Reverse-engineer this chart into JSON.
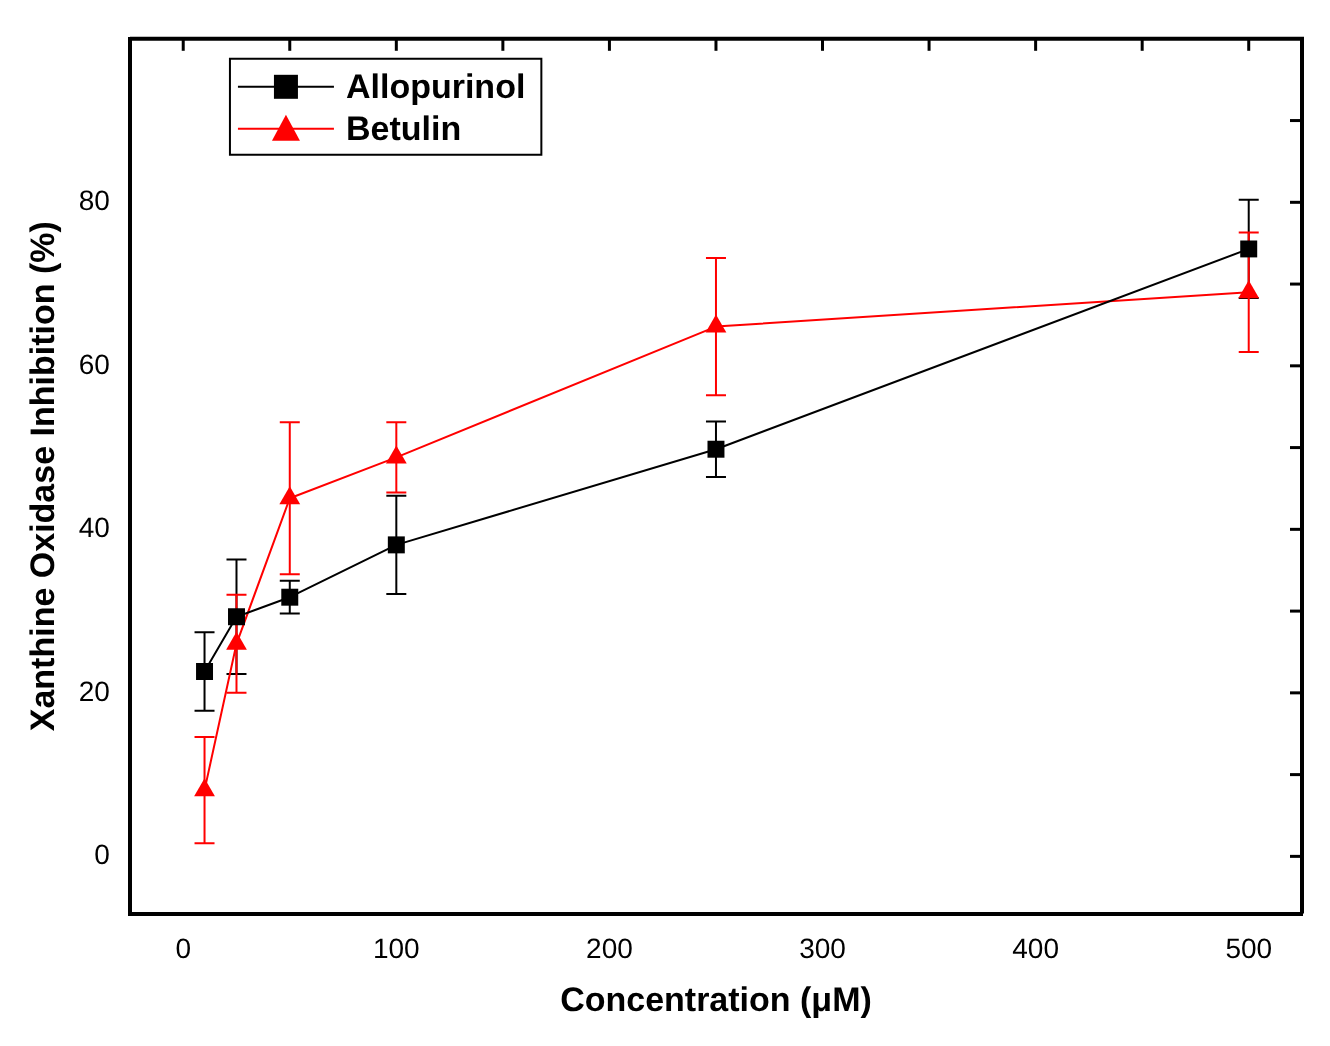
{
  "chart_data": {
    "type": "line",
    "xlabel": "Concentration (μM)",
    "ylabel": "Xanthine Oxidase Inhibition (%)",
    "xlim": [
      -25,
      525
    ],
    "xticks": [
      0,
      {
        "value": 50,
        "label": null
      },
      100,
      {
        "value": 150,
        "label": null
      },
      200,
      {
        "value": 250,
        "label": null
      },
      300,
      {
        "value": 350,
        "label": null
      },
      400,
      {
        "value": 450,
        "label": null
      },
      500
    ],
    "ylim": [
      -7,
      100
    ],
    "yticks": [
      0,
      {
        "value": 10,
        "label": null
      },
      20,
      {
        "value": 30,
        "label": null
      },
      40,
      {
        "value": 50,
        "label": null
      },
      60,
      {
        "value": 70,
        "label": null
      },
      80,
      {
        "value": 90,
        "label": null
      }
    ],
    "grid": false,
    "legend": "top left",
    "line_style": "solid",
    "series": [
      {
        "name": "Allopurinol",
        "color": "#000000",
        "marker": "square",
        "x": [
          10,
          25,
          50,
          100,
          250,
          500
        ],
        "values": [
          22.6,
          29.3,
          31.7,
          38.1,
          49.8,
          74.3
        ],
        "errors": [
          4.8,
          7,
          2,
          6,
          3.4,
          6
        ]
      },
      {
        "name": "Betulin",
        "color": "#ff0000",
        "marker": "triangle",
        "x": [
          10,
          25,
          50,
          100,
          250,
          500
        ],
        "values": [
          8.1,
          26,
          43.8,
          48.8,
          64.8,
          69
        ],
        "errors": [
          6.5,
          6,
          9.3,
          4.3,
          8.4,
          7.3
        ]
      }
    ]
  }
}
